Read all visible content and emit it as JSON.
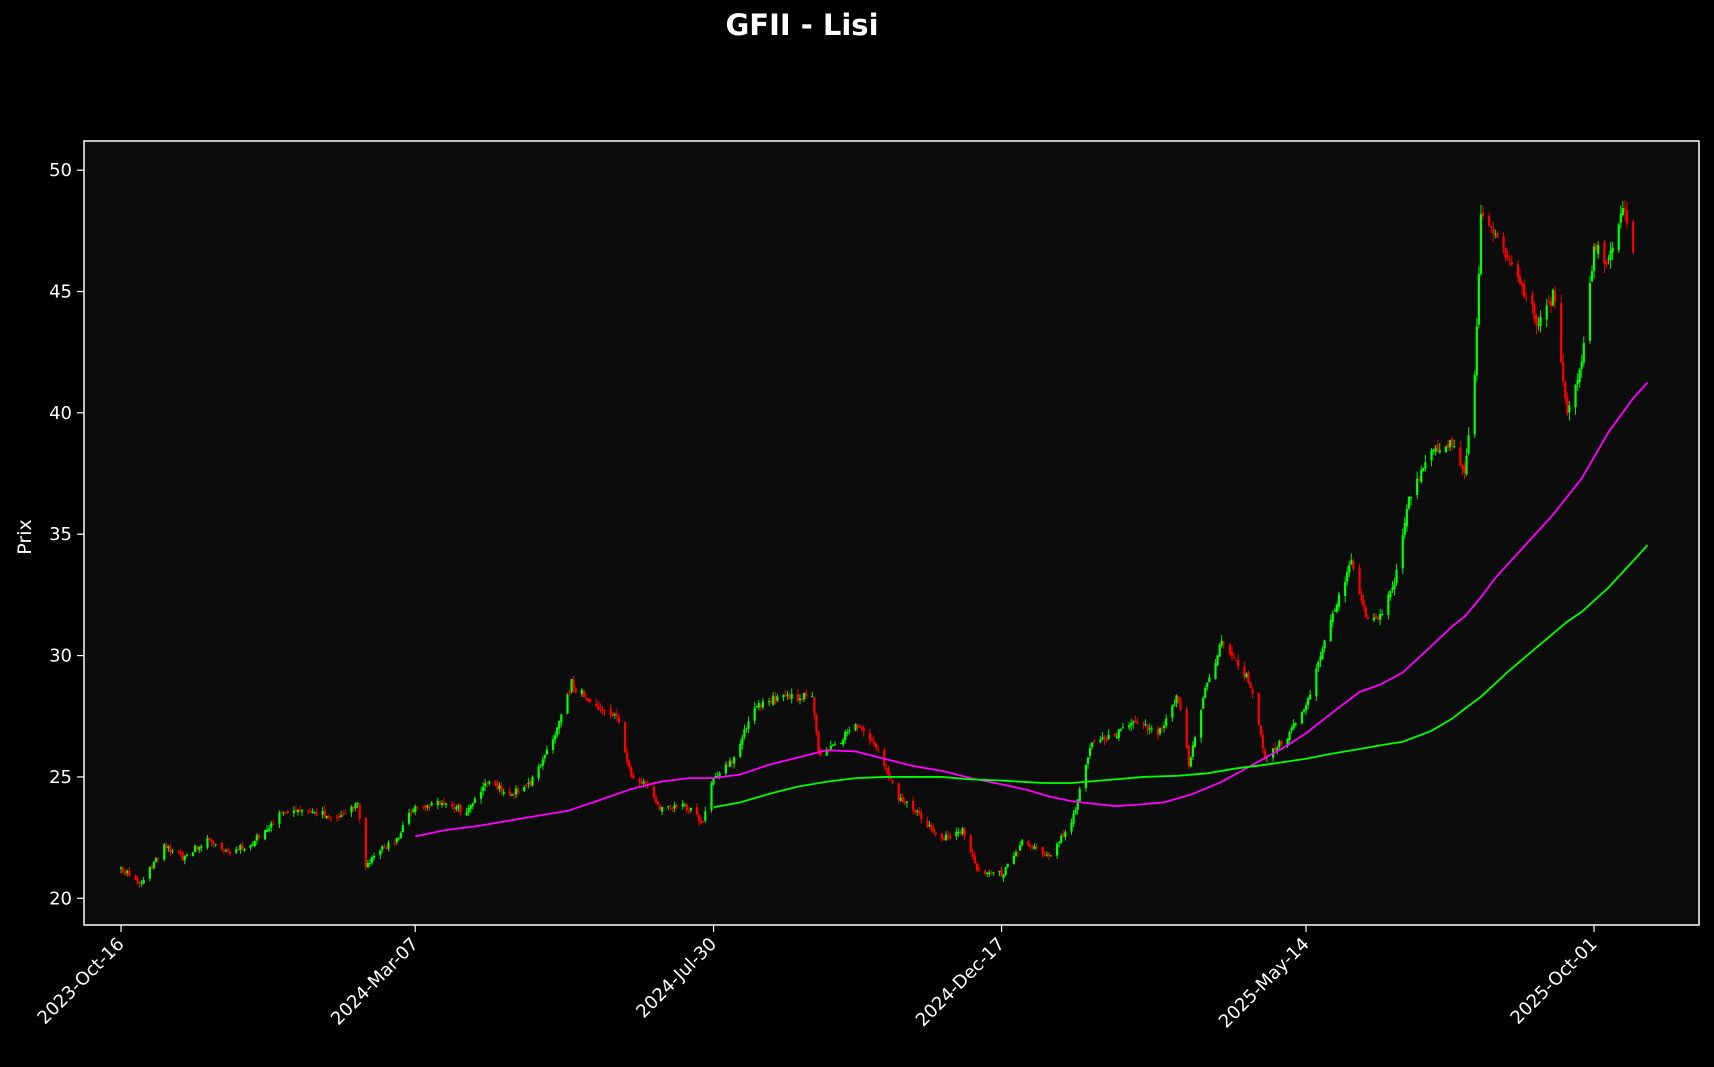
{
  "chart_data": {
    "type": "candlestick",
    "title": "GFII - Lisi",
    "xlabel": "",
    "ylabel": "Prix",
    "ylim": [
      18.9,
      51.2
    ],
    "x_range": [
      "2023-09-28",
      "2025-11-21"
    ],
    "yticks": [
      20,
      25,
      30,
      35,
      40,
      45,
      50
    ],
    "xticks": [
      "2023-Oct-16",
      "2024-Mar-07",
      "2024-Jul-30",
      "2024-Dec-17",
      "2025-May-14",
      "2025-Oct-01"
    ],
    "grid": false,
    "background": "#0c0c0c",
    "up_color": "#00ff00",
    "down_color": "#ff0000",
    "price_path": [
      [
        "2023-10-16",
        21.2
      ],
      [
        "2023-10-26",
        20.6
      ],
      [
        "2023-11-06",
        22.1
      ],
      [
        "2023-11-16",
        21.7
      ],
      [
        "2023-11-27",
        22.4
      ],
      [
        "2023-12-07",
        21.9
      ],
      [
        "2023-12-18",
        22.2
      ],
      [
        "2024-01-02",
        23.5
      ],
      [
        "2024-01-15",
        23.6
      ],
      [
        "2024-01-29",
        23.2
      ],
      [
        "2024-02-08",
        23.9
      ],
      [
        "2024-02-12",
        21.3
      ],
      [
        "2024-02-19",
        22.0
      ],
      [
        "2024-02-26",
        22.3
      ],
      [
        "2024-03-07",
        23.8
      ],
      [
        "2024-03-21",
        23.9
      ],
      [
        "2024-04-01",
        23.6
      ],
      [
        "2024-04-11",
        24.8
      ],
      [
        "2024-04-22",
        24.3
      ],
      [
        "2024-05-02",
        24.8
      ],
      [
        "2024-05-13",
        26.5
      ],
      [
        "2024-05-22",
        28.8
      ],
      [
        "2024-06-03",
        27.8
      ],
      [
        "2024-06-13",
        27.5
      ],
      [
        "2024-06-20",
        25.0
      ],
      [
        "2024-06-27",
        24.8
      ],
      [
        "2024-07-04",
        23.6
      ],
      [
        "2024-07-15",
        23.9
      ],
      [
        "2024-07-25",
        23.2
      ],
      [
        "2024-07-30",
        25.0
      ],
      [
        "2024-08-08",
        25.6
      ],
      [
        "2024-08-20",
        28.0
      ],
      [
        "2024-09-02",
        28.3
      ],
      [
        "2024-09-16",
        28.3
      ],
      [
        "2024-09-19",
        26.0
      ],
      [
        "2024-09-30",
        26.5
      ],
      [
        "2024-10-07",
        27.3
      ],
      [
        "2024-10-17",
        26.2
      ],
      [
        "2024-10-28",
        24.2
      ],
      [
        "2024-11-07",
        23.4
      ],
      [
        "2024-11-18",
        22.4
      ],
      [
        "2024-11-28",
        22.8
      ],
      [
        "2024-12-05",
        21.2
      ],
      [
        "2024-12-17",
        21.0
      ],
      [
        "2024-12-27",
        22.3
      ],
      [
        "2025-01-09",
        21.8
      ],
      [
        "2025-01-20",
        23.0
      ],
      [
        "2025-01-30",
        26.5
      ],
      [
        "2025-02-10",
        26.8
      ],
      [
        "2025-02-20",
        27.3
      ],
      [
        "2025-03-03",
        26.8
      ],
      [
        "2025-03-13",
        28.3
      ],
      [
        "2025-03-18",
        25.5
      ],
      [
        "2025-03-27",
        29.0
      ],
      [
        "2025-04-03",
        30.6
      ],
      [
        "2025-04-10",
        29.8
      ],
      [
        "2025-04-17",
        28.8
      ],
      [
        "2025-04-24",
        25.7
      ],
      [
        "2025-05-05",
        26.7
      ],
      [
        "2025-05-14",
        28.0
      ],
      [
        "2025-05-26",
        31.5
      ],
      [
        "2025-06-05",
        33.8
      ],
      [
        "2025-06-12",
        31.6
      ],
      [
        "2025-06-19",
        31.6
      ],
      [
        "2025-06-26",
        33.0
      ],
      [
        "2025-07-03",
        36.5
      ],
      [
        "2025-07-14",
        38.5
      ],
      [
        "2025-07-24",
        38.7
      ],
      [
        "2025-07-30",
        37.5
      ],
      [
        "2025-08-04",
        41.5
      ],
      [
        "2025-08-07",
        48.2
      ],
      [
        "2025-08-14",
        47.2
      ],
      [
        "2025-08-21",
        46.2
      ],
      [
        "2025-08-28",
        45.0
      ],
      [
        "2025-09-04",
        43.5
      ],
      [
        "2025-09-11",
        45.0
      ],
      [
        "2025-09-18",
        40.0
      ],
      [
        "2025-09-25",
        42.0
      ],
      [
        "2025-10-01",
        46.8
      ],
      [
        "2025-10-08",
        46.2
      ],
      [
        "2025-10-15",
        48.5
      ],
      [
        "2025-10-20",
        46.5
      ]
    ],
    "series": [
      {
        "type": "line",
        "color": "#ff00ff",
        "points": [
          [
            "2024-03-07",
            22.55
          ],
          [
            "2024-03-21",
            22.8
          ],
          [
            "2024-04-08",
            23.0
          ],
          [
            "2024-05-02",
            23.35
          ],
          [
            "2024-05-20",
            23.6
          ],
          [
            "2024-06-03",
            24.0
          ],
          [
            "2024-06-20",
            24.5
          ],
          [
            "2024-07-04",
            24.8
          ],
          [
            "2024-07-18",
            24.95
          ],
          [
            "2024-07-30",
            24.95
          ],
          [
            "2024-08-12",
            25.1
          ],
          [
            "2024-08-26",
            25.5
          ],
          [
            "2024-09-16",
            25.95
          ],
          [
            "2024-09-23",
            26.1
          ],
          [
            "2024-10-07",
            26.05
          ],
          [
            "2024-10-21",
            25.75
          ],
          [
            "2024-11-04",
            25.45
          ],
          [
            "2024-11-18",
            25.25
          ],
          [
            "2024-12-02",
            24.95
          ],
          [
            "2024-12-17",
            24.7
          ],
          [
            "2024-12-30",
            24.45
          ],
          [
            "2025-01-09",
            24.2
          ],
          [
            "2025-01-20",
            24.0
          ],
          [
            "2025-02-10",
            23.8
          ],
          [
            "2025-02-20",
            23.85
          ],
          [
            "2025-03-06",
            23.95
          ],
          [
            "2025-03-20",
            24.3
          ],
          [
            "2025-04-03",
            24.8
          ],
          [
            "2025-04-17",
            25.45
          ],
          [
            "2025-05-05",
            26.3
          ],
          [
            "2025-05-14",
            26.8
          ],
          [
            "2025-05-26",
            27.6
          ],
          [
            "2025-06-09",
            28.5
          ],
          [
            "2025-06-19",
            28.8
          ],
          [
            "2025-06-30",
            29.3
          ],
          [
            "2025-07-14",
            30.4
          ],
          [
            "2025-07-24",
            31.2
          ],
          [
            "2025-07-30",
            31.6
          ],
          [
            "2025-08-07",
            32.4
          ],
          [
            "2025-08-14",
            33.2
          ],
          [
            "2025-08-28",
            34.5
          ],
          [
            "2025-09-11",
            35.8
          ],
          [
            "2025-09-25",
            37.3
          ],
          [
            "2025-10-08",
            39.2
          ],
          [
            "2025-10-20",
            40.6
          ],
          [
            "2025-10-27",
            41.25
          ]
        ]
      },
      {
        "type": "line",
        "color": "#00ff00",
        "points": [
          [
            "2024-07-30",
            23.75
          ],
          [
            "2024-08-12",
            23.95
          ],
          [
            "2024-08-26",
            24.3
          ],
          [
            "2024-09-09",
            24.6
          ],
          [
            "2024-09-23",
            24.8
          ],
          [
            "2024-10-07",
            24.95
          ],
          [
            "2024-10-21",
            25.0
          ],
          [
            "2024-11-04",
            25.0
          ],
          [
            "2024-11-18",
            25.0
          ],
          [
            "2024-12-02",
            24.9
          ],
          [
            "2024-12-17",
            24.85
          ],
          [
            "2025-01-06",
            24.75
          ],
          [
            "2025-01-20",
            24.75
          ],
          [
            "2025-02-10",
            24.9
          ],
          [
            "2025-02-24",
            25.0
          ],
          [
            "2025-03-13",
            25.05
          ],
          [
            "2025-03-27",
            25.15
          ],
          [
            "2025-04-10",
            25.35
          ],
          [
            "2025-04-24",
            25.5
          ],
          [
            "2025-05-14",
            25.75
          ],
          [
            "2025-05-26",
            25.95
          ],
          [
            "2025-06-09",
            26.15
          ],
          [
            "2025-06-19",
            26.3
          ],
          [
            "2025-06-30",
            26.45
          ],
          [
            "2025-07-14",
            26.9
          ],
          [
            "2025-07-24",
            27.4
          ],
          [
            "2025-07-30",
            27.8
          ],
          [
            "2025-08-07",
            28.3
          ],
          [
            "2025-08-21",
            29.4
          ],
          [
            "2025-09-04",
            30.4
          ],
          [
            "2025-09-18",
            31.4
          ],
          [
            "2025-09-25",
            31.8
          ],
          [
            "2025-10-08",
            32.8
          ],
          [
            "2025-10-20",
            33.9
          ],
          [
            "2025-10-27",
            34.55
          ]
        ]
      }
    ]
  }
}
